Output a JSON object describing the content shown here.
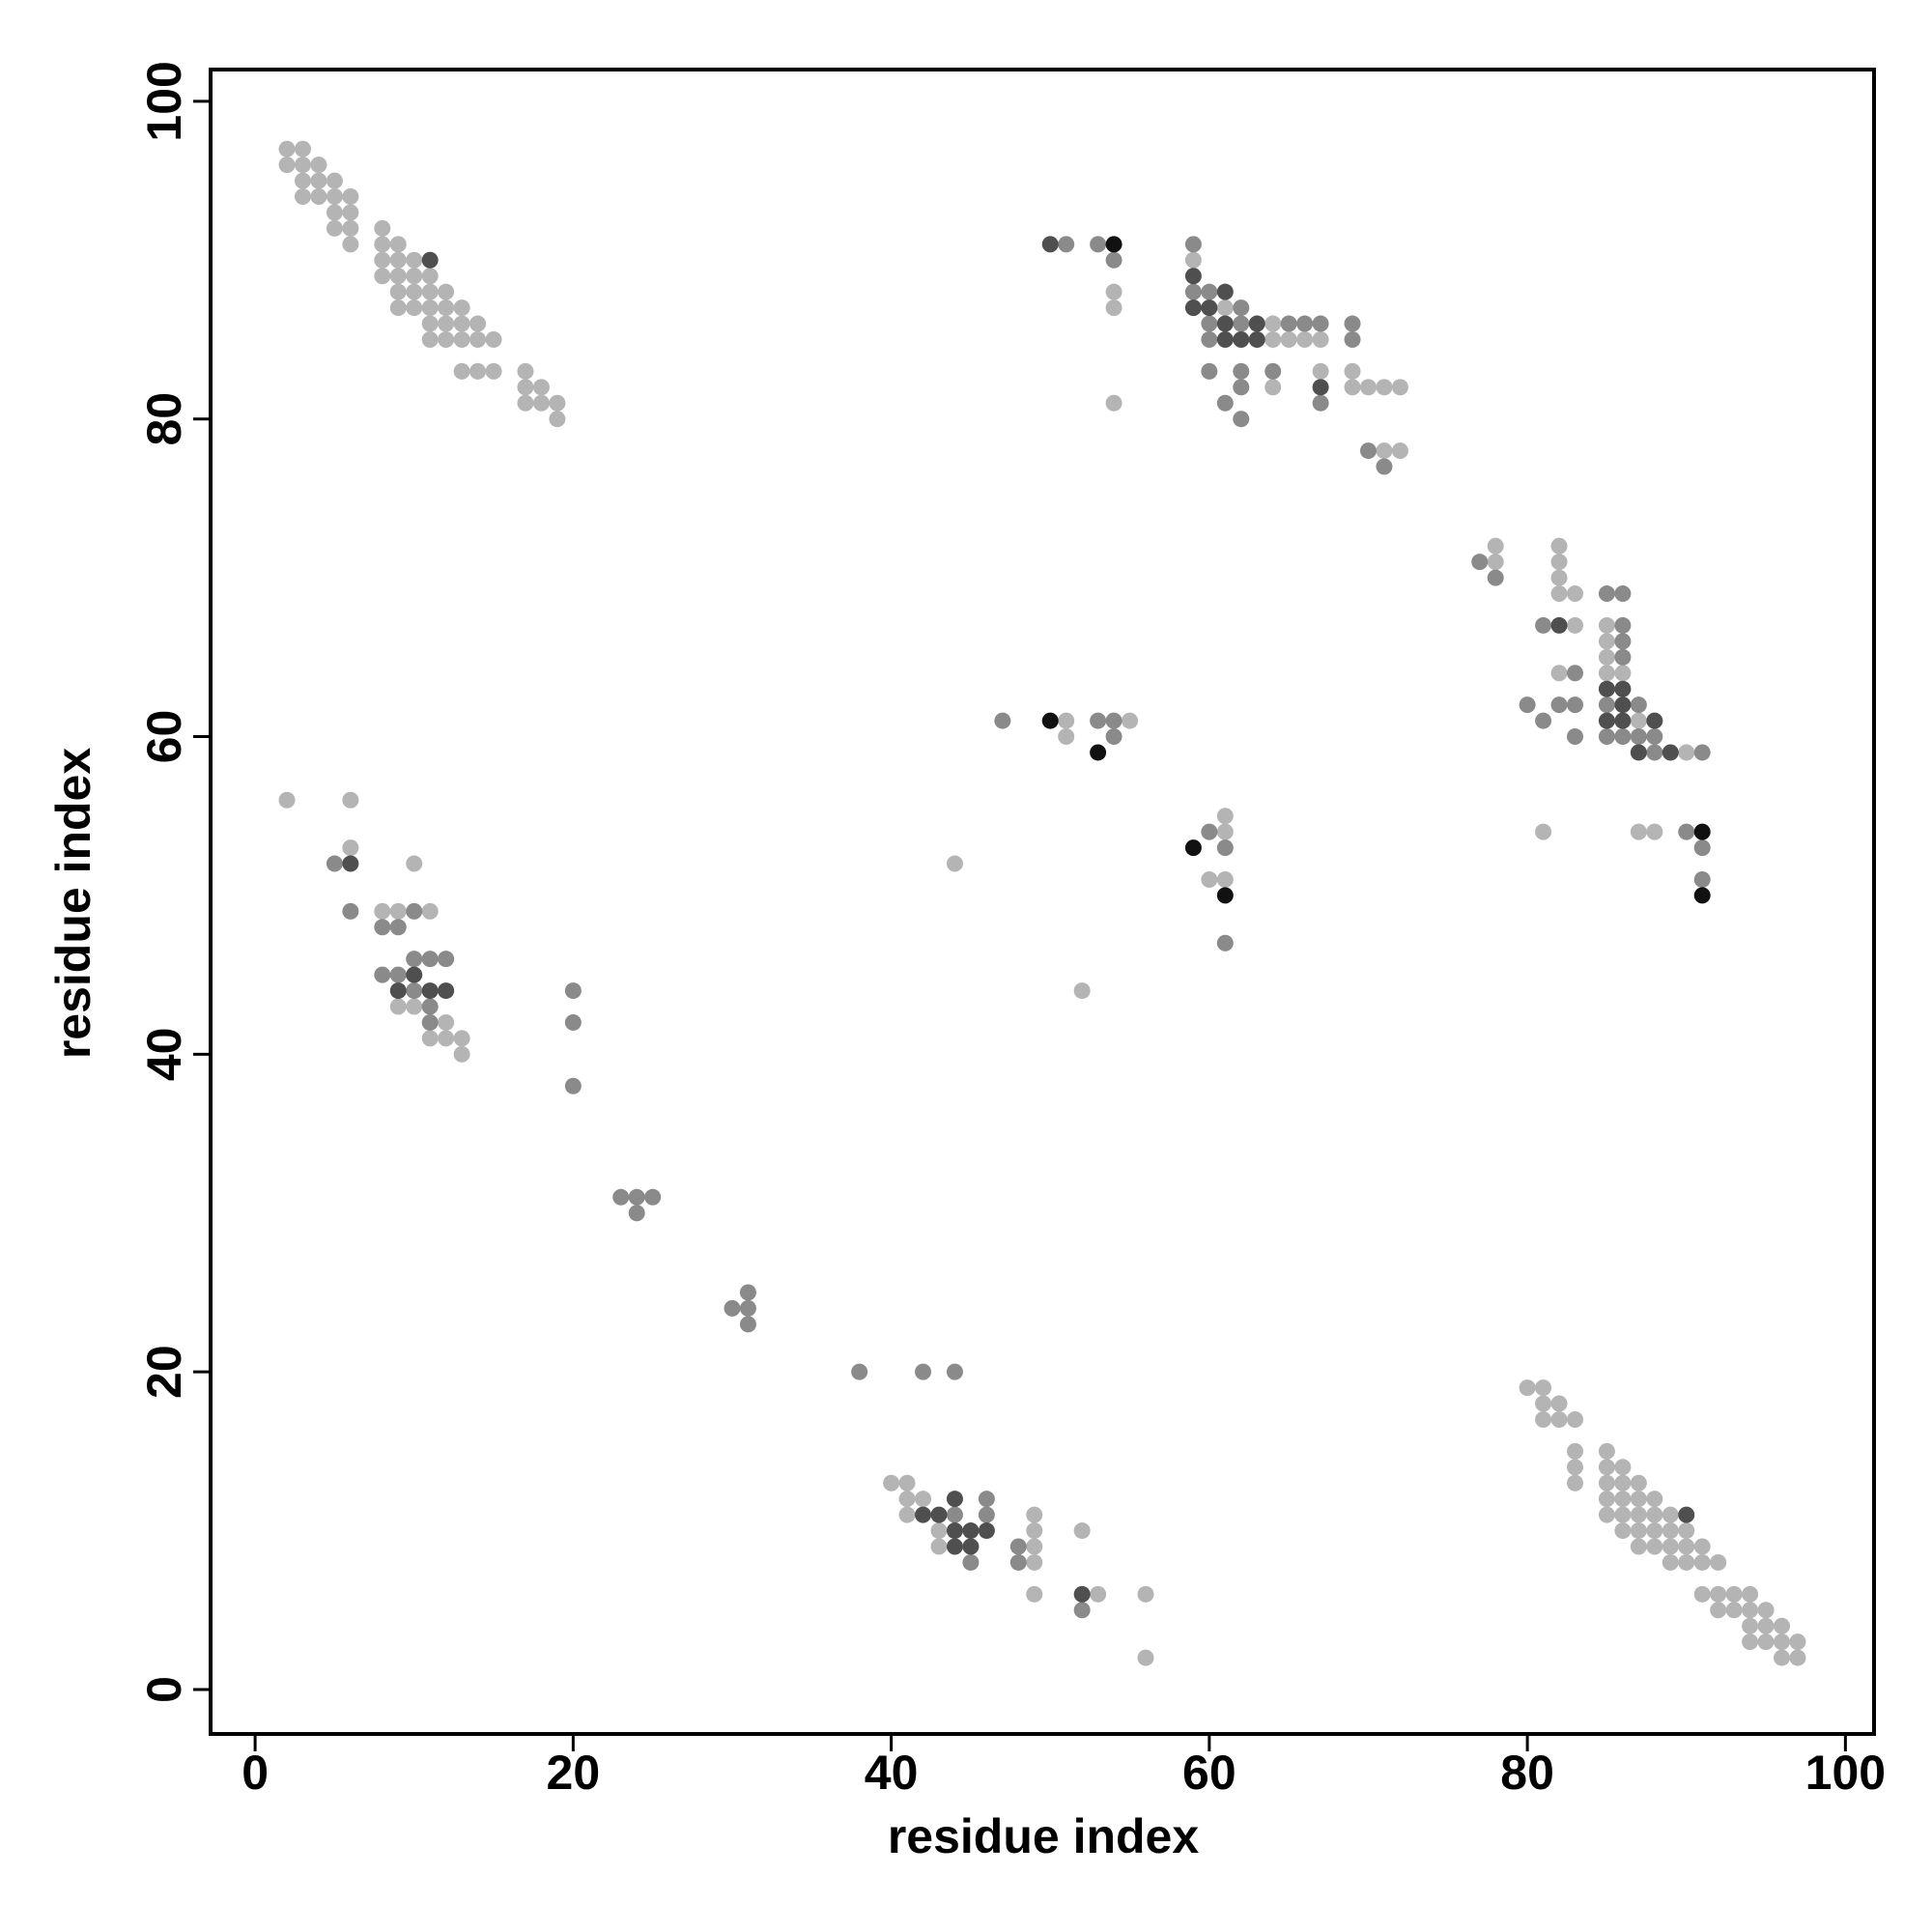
{
  "chart_data": {
    "type": "scatter",
    "xlabel": "residue index",
    "ylabel": "residue index",
    "xlim": [
      -2.8,
      101.8
    ],
    "ylim": [
      -2.8,
      102
    ],
    "xticks": [
      0,
      20,
      40,
      60,
      80,
      100
    ],
    "yticks": [
      0,
      20,
      40,
      60,
      80,
      100
    ],
    "series": [
      {
        "color": "#b4b4b4",
        "x": [
          2,
          3,
          2,
          3,
          4,
          3,
          4,
          5,
          3,
          4,
          5,
          6,
          5,
          6,
          5,
          6,
          8,
          6,
          8,
          9,
          8,
          9,
          10,
          8,
          9,
          10,
          11,
          9,
          10,
          11,
          12,
          9,
          10,
          11,
          12,
          13,
          11,
          12,
          13,
          14,
          11,
          12,
          13,
          14,
          15,
          13,
          14,
          15,
          17,
          17,
          18,
          17,
          18,
          19,
          19,
          80,
          81,
          81,
          82,
          81,
          82,
          83,
          83,
          85,
          83,
          85,
          86,
          83,
          85,
          86,
          87,
          85,
          86,
          87,
          88,
          85,
          86,
          87,
          88,
          89,
          86,
          87,
          88,
          89,
          90,
          87,
          88,
          89,
          90,
          91,
          89,
          90,
          91,
          92,
          91,
          92,
          93,
          94,
          92,
          93,
          94,
          95,
          94,
          95,
          96,
          94,
          95,
          96,
          97,
          96,
          97,
          59,
          54,
          54,
          61,
          64,
          64,
          65,
          66,
          67,
          67,
          69,
          64,
          69,
          70,
          71,
          72,
          54,
          71,
          72,
          78,
          82,
          78,
          82,
          82,
          82,
          83,
          83,
          85,
          85,
          85,
          82,
          85,
          86,
          87,
          90,
          81,
          87,
          88,
          51,
          55,
          51,
          61,
          61,
          44,
          60,
          61,
          52,
          2,
          6,
          6,
          10,
          8,
          9,
          11,
          9,
          10,
          12,
          11,
          12,
          13,
          13,
          40,
          41,
          41,
          42,
          41,
          49,
          43,
          49,
          52,
          43,
          49,
          49,
          49,
          53,
          56,
          56
        ],
        "values": [
          97,
          97,
          96,
          96,
          96,
          95,
          95,
          95,
          94,
          94,
          94,
          94,
          93,
          93,
          92,
          92,
          92,
          91,
          91,
          91,
          90,
          90,
          90,
          89,
          89,
          89,
          89,
          88,
          88,
          88,
          88,
          87,
          87,
          87,
          87,
          87,
          86,
          86,
          86,
          86,
          85,
          85,
          85,
          85,
          85,
          83,
          83,
          83,
          83,
          82,
          82,
          81,
          81,
          81,
          80,
          19,
          19,
          18,
          18,
          17,
          17,
          17,
          15,
          15,
          14,
          14,
          14,
          13,
          13,
          13,
          13,
          12,
          12,
          12,
          12,
          11,
          11,
          11,
          11,
          11,
          10,
          10,
          10,
          10,
          10,
          9,
          9,
          9,
          9,
          9,
          8,
          8,
          8,
          8,
          6,
          6,
          6,
          6,
          5,
          5,
          5,
          5,
          4,
          4,
          4,
          3,
          3,
          3,
          3,
          2,
          2,
          90,
          88,
          87,
          87,
          86,
          85,
          85,
          85,
          85,
          83,
          83,
          82,
          82,
          82,
          82,
          82,
          81,
          78,
          78,
          72,
          72,
          71,
          71,
          70,
          69,
          69,
          67,
          67,
          66,
          65,
          64,
          64,
          64,
          61,
          59,
          54,
          54,
          54,
          61,
          61,
          60,
          55,
          54,
          52,
          51,
          51,
          44,
          56,
          56,
          53,
          52,
          49,
          49,
          49,
          43,
          43,
          42,
          41,
          41,
          41,
          40,
          13,
          13,
          12,
          12,
          11,
          11,
          10,
          10,
          10,
          9,
          9,
          8,
          6,
          6,
          6,
          2
        ]
      },
      {
        "color": "#8a8a8a",
        "x": [
          51,
          53,
          59,
          54,
          59,
          60,
          62,
          60,
          62,
          65,
          66,
          67,
          69,
          60,
          69,
          60,
          62,
          64,
          62,
          61,
          67,
          62,
          70,
          71,
          77,
          78,
          85,
          86,
          81,
          86,
          86,
          86,
          83,
          80,
          82,
          83,
          85,
          87,
          81,
          83,
          85,
          86,
          87,
          88,
          88,
          91,
          90,
          91,
          91,
          47,
          53,
          54,
          54,
          60,
          61,
          61,
          5,
          6,
          10,
          8,
          9,
          10,
          11,
          12,
          8,
          9,
          10,
          20,
          11,
          11,
          20,
          20,
          23,
          24,
          25,
          24,
          31,
          30,
          31,
          31,
          38,
          42,
          44,
          46,
          44,
          46,
          48,
          45,
          48,
          52
        ],
        "values": [
          91,
          91,
          91,
          90,
          88,
          88,
          87,
          86,
          86,
          86,
          86,
          86,
          86,
          85,
          85,
          83,
          83,
          83,
          82,
          81,
          81,
          80,
          78,
          77,
          71,
          70,
          69,
          69,
          67,
          67,
          66,
          65,
          64,
          62,
          62,
          62,
          62,
          62,
          61,
          60,
          60,
          60,
          60,
          60,
          59,
          59,
          54,
          53,
          51,
          61,
          61,
          61,
          60,
          54,
          53,
          47,
          52,
          49,
          49,
          48,
          48,
          46,
          46,
          46,
          45,
          45,
          44,
          44,
          43,
          42,
          42,
          38,
          31,
          31,
          31,
          30,
          25,
          24,
          24,
          23,
          20,
          20,
          20,
          12,
          11,
          11,
          9,
          8,
          8,
          5
        ]
      },
      {
        "color": "#4f4f4f",
        "x": [
          11,
          90,
          50,
          59,
          61,
          59,
          60,
          61,
          63,
          61,
          62,
          63,
          67,
          82,
          85,
          86,
          86,
          85,
          86,
          88,
          87,
          89,
          6,
          10,
          9,
          11,
          12,
          44,
          42,
          43,
          44,
          45,
          46,
          44,
          45,
          52
        ],
        "values": [
          90,
          11,
          91,
          89,
          88,
          87,
          87,
          86,
          86,
          85,
          85,
          85,
          82,
          67,
          63,
          63,
          62,
          61,
          61,
          61,
          59,
          59,
          52,
          45,
          44,
          44,
          44,
          12,
          11,
          11,
          10,
          10,
          10,
          9,
          9,
          6
        ]
      },
      {
        "color": "#111111",
        "x": [
          54,
          91,
          91,
          50,
          53,
          59,
          61
        ],
        "values": [
          91,
          54,
          50,
          61,
          59,
          53,
          50
        ]
      }
    ]
  }
}
